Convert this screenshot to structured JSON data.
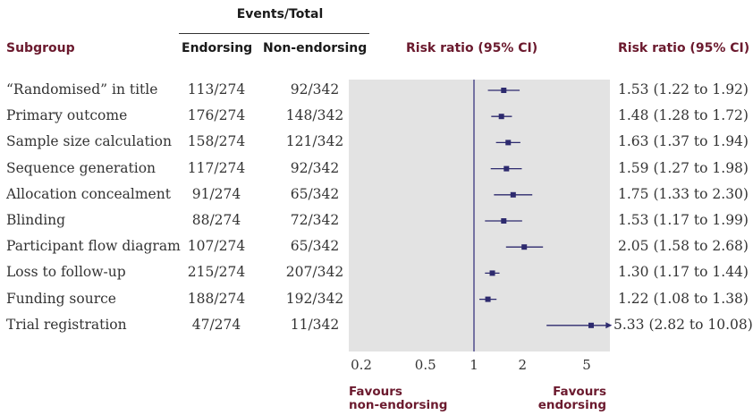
{
  "headers": {
    "group": "Events/Total",
    "subgroup": "Subgroup",
    "endorsing": "Endorsing",
    "non_endorsing": "Non-endorsing",
    "plot": "Risk ratio (95% CI)",
    "ci": "Risk ratio (95% CI)"
  },
  "favours": {
    "left_line1": "Favours",
    "left_line2": "non-endorsing",
    "right_line1": "Favours",
    "right_line2": "endorsing"
  },
  "colors": {
    "plot_bg": "#e3e3e3",
    "marker": "#2d2a6e",
    "ref_line": "#3a3580",
    "header_accent": "#6b1a2e"
  },
  "chart_data": {
    "type": "forest",
    "xscale": "log",
    "xlim": [
      0.2,
      7
    ],
    "xticks": [
      0.2,
      0.5,
      1,
      2,
      5
    ],
    "xtick_labels": [
      "0.2",
      "0.5",
      "1",
      "2",
      "5"
    ],
    "reference": 1,
    "rows": [
      {
        "label": "“Randomised” in title",
        "endorsing": "113/274",
        "non_endorsing": "92/342",
        "rr": 1.53,
        "lo": 1.22,
        "hi": 1.92,
        "ci_text": "1.53 (1.22 to 1.92)"
      },
      {
        "label": "Primary outcome",
        "endorsing": "176/274",
        "non_endorsing": "148/342",
        "rr": 1.48,
        "lo": 1.28,
        "hi": 1.72,
        "ci_text": "1.48 (1.28 to 1.72)"
      },
      {
        "label": "Sample size calculation",
        "endorsing": "158/274",
        "non_endorsing": "121/342",
        "rr": 1.63,
        "lo": 1.37,
        "hi": 1.94,
        "ci_text": "1.63 (1.37 to 1.94)"
      },
      {
        "label": "Sequence generation",
        "endorsing": "117/274",
        "non_endorsing": "92/342",
        "rr": 1.59,
        "lo": 1.27,
        "hi": 1.98,
        "ci_text": "1.59 (1.27 to 1.98)"
      },
      {
        "label": "Allocation concealment",
        "endorsing": "91/274",
        "non_endorsing": "65/342",
        "rr": 1.75,
        "lo": 1.33,
        "hi": 2.3,
        "ci_text": "1.75 (1.33 to 2.30)"
      },
      {
        "label": "Blinding",
        "endorsing": "88/274",
        "non_endorsing": "72/342",
        "rr": 1.53,
        "lo": 1.17,
        "hi": 1.99,
        "ci_text": "1.53 (1.17 to 1.99)"
      },
      {
        "label": "Participant flow diagram",
        "endorsing": "107/274",
        "non_endorsing": "65/342",
        "rr": 2.05,
        "lo": 1.58,
        "hi": 2.68,
        "ci_text": "2.05 (1.58 to 2.68)"
      },
      {
        "label": "Loss to follow-up",
        "endorsing": "215/274",
        "non_endorsing": "207/342",
        "rr": 1.3,
        "lo": 1.17,
        "hi": 1.44,
        "ci_text": "1.30 (1.17 to 1.44)"
      },
      {
        "label": "Funding source",
        "endorsing": "188/274",
        "non_endorsing": "192/342",
        "rr": 1.22,
        "lo": 1.08,
        "hi": 1.38,
        "ci_text": "1.22 (1.08 to 1.38)"
      },
      {
        "label": "Trial registration",
        "endorsing": "47/274",
        "non_endorsing": "11/342",
        "rr": 5.33,
        "lo": 2.82,
        "hi": 10.08,
        "ci_text": "5.33 (2.82 to 10.08)"
      }
    ]
  }
}
